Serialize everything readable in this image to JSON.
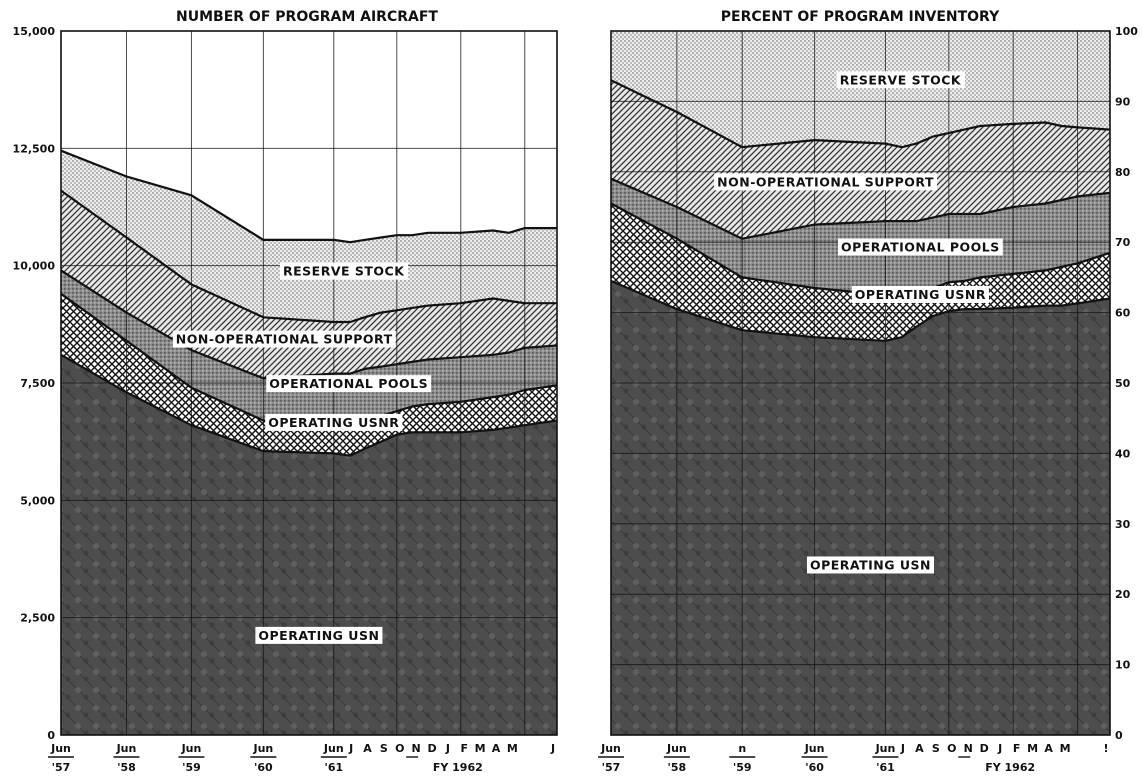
{
  "chart_data": [
    {
      "type": "area",
      "title": "NUMBER OF PROGRAM AIRCRAFT",
      "stacked": true,
      "grid": true,
      "ylim": [
        0,
        15000
      ],
      "yticks": [
        0,
        2500,
        5000,
        7500,
        10000,
        12500,
        15000
      ],
      "ytick_labels": [
        "0",
        "2,500",
        "5,000",
        "7,500",
        "10,000",
        "12,500",
        "15,000"
      ],
      "ytick_side": "left",
      "x": [
        0,
        1,
        2,
        3,
        4,
        5,
        6,
        7,
        8,
        9,
        10,
        11,
        12,
        13,
        14,
        15
      ],
      "xtick_labels": [
        "Jun",
        "Jun",
        "Jun",
        "Jun",
        "Jun",
        "J",
        "A",
        "S",
        "O",
        "N",
        "D",
        "J",
        "F",
        "M",
        "A",
        "M",
        "J"
      ],
      "xtick_year_labels": [
        "'57",
        "'58",
        "'59",
        "'60",
        "'61"
      ],
      "fiscal_year_label": "FY 1962",
      "series": [
        {
          "name": "OPERATING USN",
          "top": [
            8100,
            7300,
            6600,
            6050,
            6000,
            5950,
            6100,
            6250,
            6400,
            6450,
            6450,
            6450,
            6500,
            6550,
            6600,
            6700
          ]
        },
        {
          "name": "OPERATING USNR",
          "top": [
            9400,
            8400,
            7400,
            6700,
            6550,
            6500,
            6650,
            6800,
            6900,
            7000,
            7050,
            7100,
            7200,
            7250,
            7350,
            7450
          ]
        },
        {
          "name": "OPERATIONAL POOLS",
          "top": [
            9900,
            9000,
            8200,
            7600,
            7700,
            7700,
            7800,
            7850,
            7900,
            7950,
            8000,
            8050,
            8100,
            8150,
            8250,
            8300
          ]
        },
        {
          "name": "NON-OPERATIONAL SUPPORT",
          "top": [
            11600,
            10600,
            9600,
            8900,
            8800,
            8800,
            8900,
            9000,
            9050,
            9100,
            9150,
            9200,
            9300,
            9250,
            9200,
            9200
          ]
        },
        {
          "name": "RESERVE STOCK",
          "top": [
            12450,
            11900,
            11500,
            10550,
            10550,
            10500,
            10550,
            10600,
            10650,
            10650,
            10700,
            10700,
            10750,
            10700,
            10800,
            10800
          ]
        }
      ]
    },
    {
      "type": "area",
      "title": "PERCENT OF PROGRAM INVENTORY",
      "stacked": true,
      "grid": true,
      "ylim": [
        0,
        100
      ],
      "yticks": [
        0,
        10,
        20,
        30,
        40,
        50,
        60,
        70,
        80,
        90,
        100
      ],
      "ytick_labels": [
        "0",
        "10",
        "20",
        "30",
        "40",
        "50",
        "60",
        "70",
        "80",
        "90",
        "100"
      ],
      "ytick_side": "right",
      "x": [
        0,
        1,
        2,
        3,
        4,
        5,
        6,
        7,
        8,
        9,
        10,
        11,
        12,
        13,
        14,
        15
      ],
      "xtick_labels": [
        "Jun",
        "Jun",
        "n",
        "Jun",
        "Jun",
        "J",
        "A",
        "S",
        "O",
        "N",
        "D",
        "J",
        "F",
        "M",
        "A",
        "M",
        "!"
      ],
      "xtick_year_labels": [
        "'57",
        "'58",
        "'59",
        "'60",
        "'61"
      ],
      "fiscal_year_label": "FY 1962",
      "series": [
        {
          "name": "OPERATING USN",
          "top": [
            64.5,
            60.5,
            57.5,
            56.5,
            56.0,
            56.5,
            58.0,
            59.5,
            60.2,
            60.5,
            60.5,
            60.7,
            61.0,
            61.0,
            61.3,
            62.0
          ]
        },
        {
          "name": "OPERATING USNR",
          "top": [
            75.5,
            70.5,
            65.0,
            63.5,
            62.5,
            62.0,
            62.8,
            63.5,
            64.3,
            64.5,
            65.0,
            65.5,
            66.0,
            66.5,
            67.0,
            68.5
          ]
        },
        {
          "name": "OPERATIONAL POOLS",
          "top": [
            79.0,
            75.0,
            70.5,
            72.5,
            73.0,
            73.0,
            73.0,
            73.5,
            74.0,
            74.0,
            74.0,
            75.0,
            75.5,
            76.0,
            76.5,
            77.0
          ]
        },
        {
          "name": "NON-OPERATIONAL SUPPORT",
          "top": [
            93.0,
            88.5,
            83.5,
            84.5,
            84.0,
            83.5,
            84.0,
            85.0,
            85.5,
            86.0,
            86.5,
            86.8,
            87.0,
            86.5,
            86.3,
            86.0
          ]
        },
        {
          "name": "RESERVE STOCK",
          "top": [
            100,
            100,
            100,
            100,
            100,
            100,
            100,
            100,
            100,
            100,
            100,
            100,
            100,
            100,
            100,
            100
          ]
        }
      ]
    }
  ]
}
